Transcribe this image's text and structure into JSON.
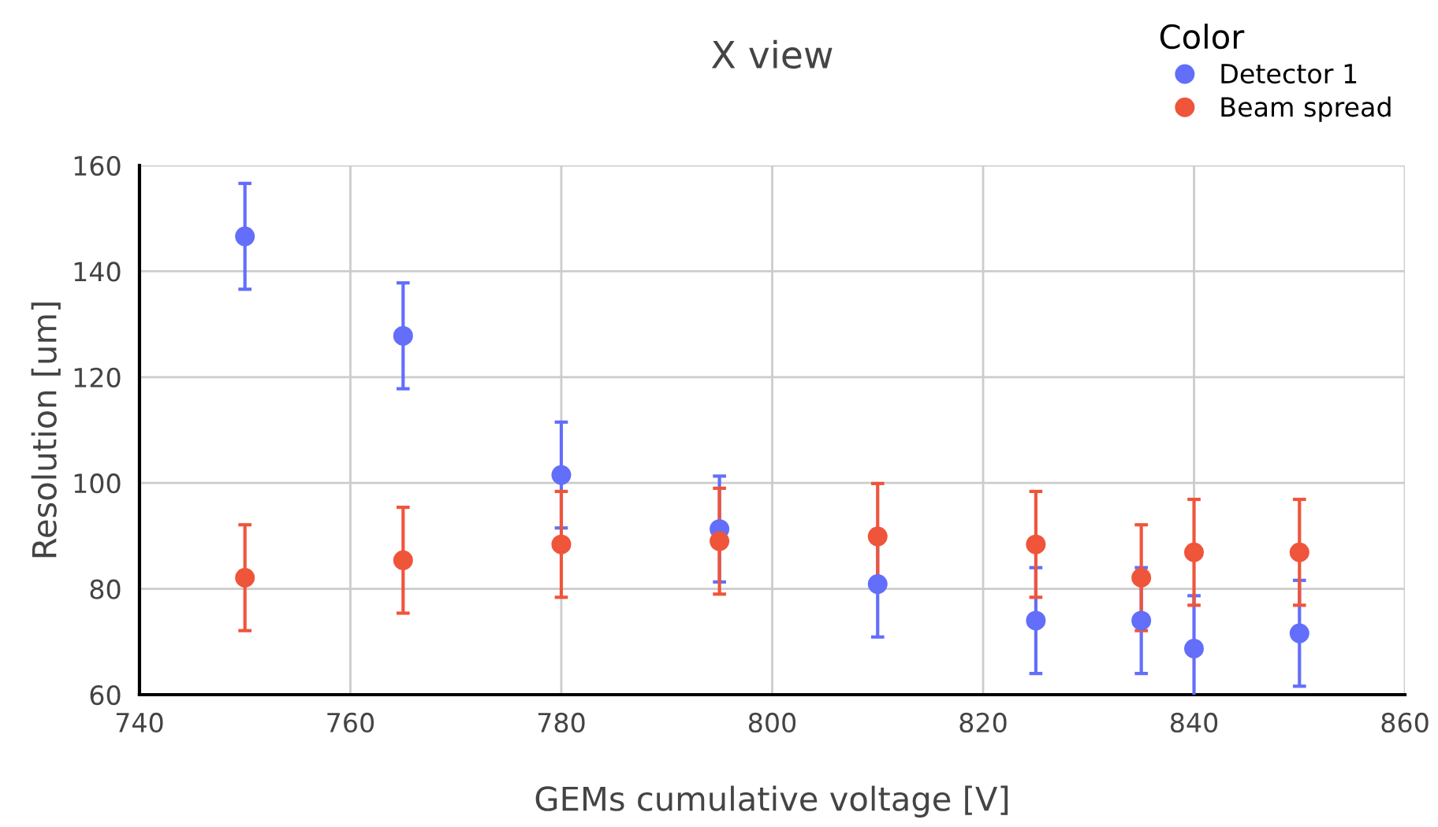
{
  "chart_data": {
    "type": "scatter",
    "title": "X view",
    "xlabel": "GEMs cumulative voltage [V]",
    "ylabel": "Resolution [um]",
    "legend_title": "Color",
    "x": [
      750,
      765,
      780,
      795,
      810,
      825,
      835,
      840,
      850
    ],
    "series": [
      {
        "name": "Detector 1",
        "color": "#636efa",
        "values": [
          146.6,
          127.8,
          101.5,
          91.3,
          80.9,
          74,
          74,
          68.7,
          71.6
        ],
        "errors": [
          10,
          10,
          10,
          10,
          10,
          10,
          10,
          10,
          10
        ]
      },
      {
        "name": "Beam spread",
        "color": "#ef553b",
        "values": [
          82.1,
          85.4,
          88.4,
          89,
          89.9,
          88.4,
          82.1,
          86.9,
          86.9
        ],
        "errors": [
          10,
          10,
          10,
          10,
          10,
          10,
          10,
          10,
          10
        ]
      }
    ],
    "xlim": [
      740,
      860
    ],
    "xticks": [
      740,
      760,
      780,
      800,
      820,
      840,
      860
    ],
    "ylim": [
      60,
      160
    ],
    "yticks": [
      60,
      80,
      100,
      120,
      140,
      160
    ],
    "grid": true,
    "legend": "top right",
    "marker": "circle"
  }
}
